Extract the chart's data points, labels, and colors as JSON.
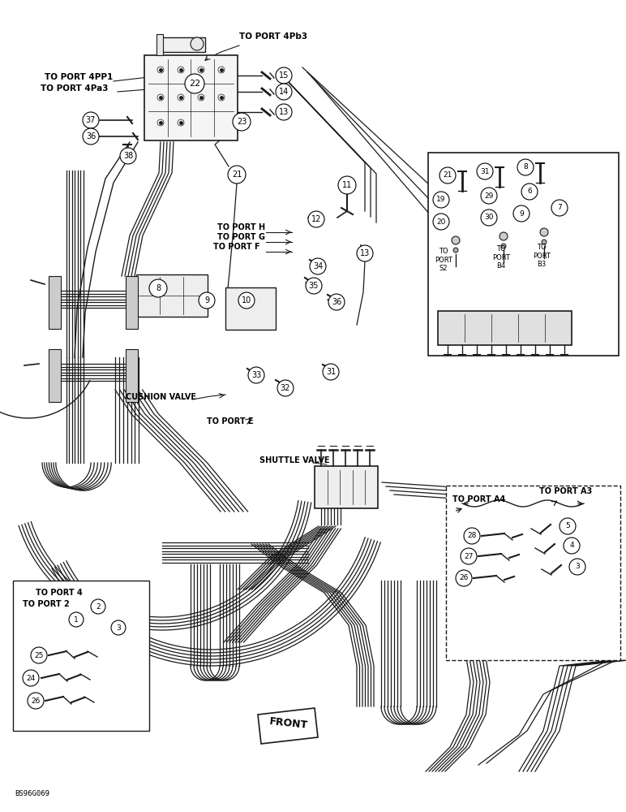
{
  "bg_color": "#ffffff",
  "fig_width": 7.72,
  "fig_height": 10.0,
  "lc": "#1a1a1a",
  "tc": "#000000",
  "labels": {
    "to_port_4pb3": "TO PORT 4Pb3",
    "to_port_4pp1": "TO PORT 4PP1",
    "to_port_4pa3": "TO PORT 4Pa3",
    "to_port_h": "TO PORT H",
    "to_port_g": "TO PORT G",
    "to_port_f": "TO PORT F",
    "to_port_e": "TO PORT E",
    "cushion_valve": "CUSHION VALVE",
    "shuttle_valve": "SHUTTLE VALVE",
    "to_port_s2": "TO\nPORT\nS2",
    "to_port_b4": "TO\nPORT\nB4",
    "to_port_b3": "TO\nPORT\nB3",
    "to_port_a4": "TO PORT A4",
    "to_port_a3": "TO PORT A3",
    "to_port_4": "TO PORT 4",
    "to_port_2": "TO PORT 2",
    "front": "FRONT",
    "code": "BS96G069"
  }
}
